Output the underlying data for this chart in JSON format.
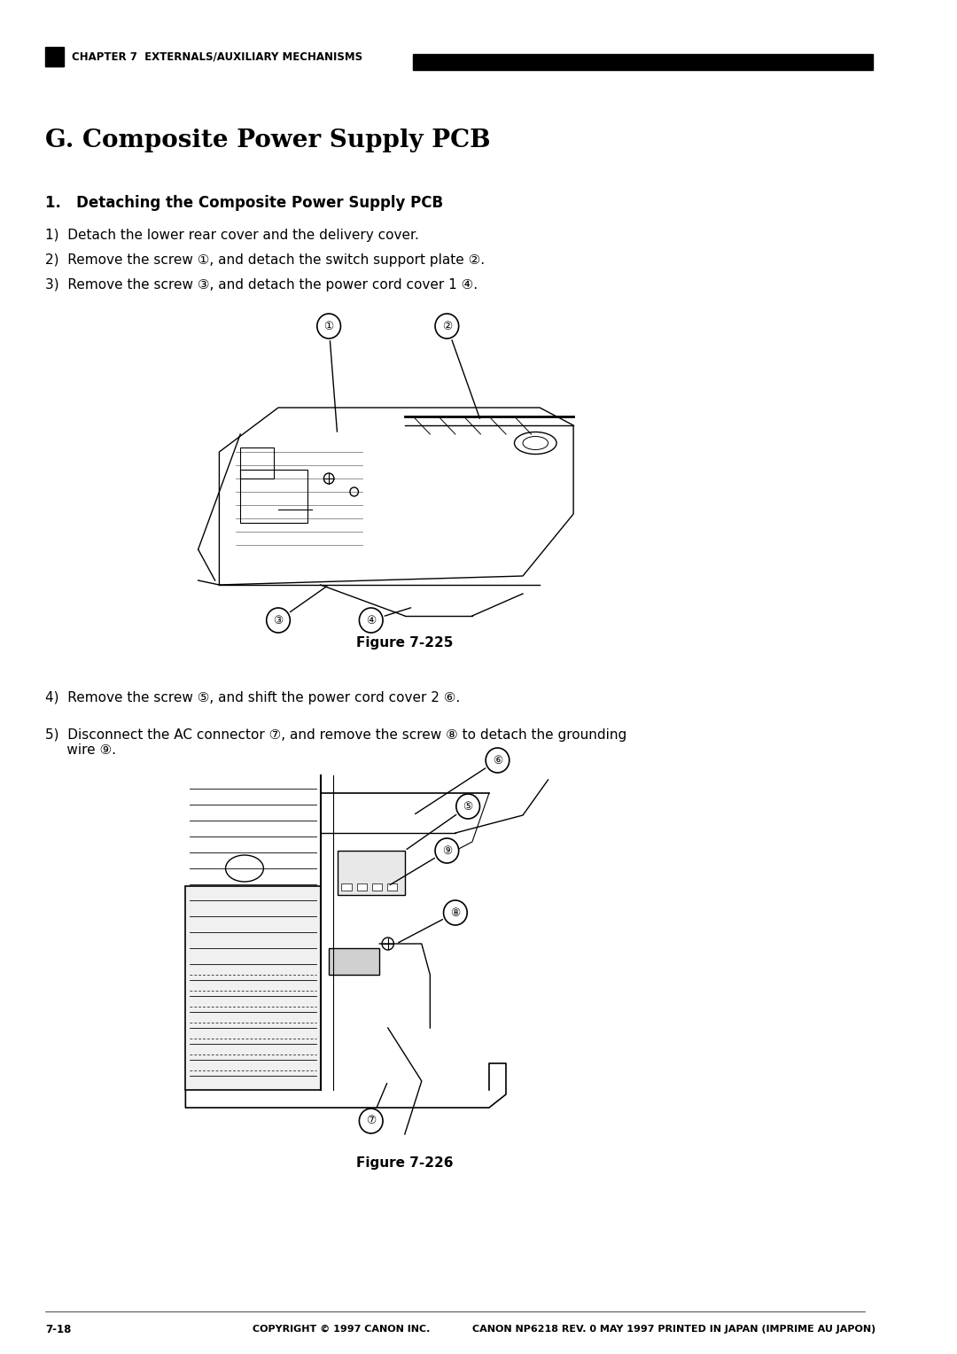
{
  "page_width": 10.8,
  "page_height": 15.28,
  "bg_color": "#ffffff",
  "header_bar_color": "#000000",
  "header_text": "CHAPTER 7  EXTERNALS/AUXILIARY MECHANISMS",
  "section_title": "G. Composite Power Supply PCB",
  "subsection_title": "1.   Detaching the Composite Power Supply PCB",
  "steps": [
    "1)  Detach the lower rear cover and the delivery cover.",
    "2)  Remove the screw ①, and detach the switch support plate ②.",
    "3)  Remove the screw ③, and detach the power cord cover 1 ④."
  ],
  "steps2": [
    "4)  Remove the screw ⑤, and shift the power cord cover 2 ⑥.",
    "5)  Disconnect the AC connector ⑦, and remove the screw ⑧ to detach the grounding\n     wire ⑨."
  ],
  "fig1_caption": "Figure 7-225",
  "fig2_caption": "Figure 7-226",
  "footer_left": "7-18",
  "footer_center": "COPYRIGHT © 1997 CANON INC.",
  "footer_right": "CANON NP6218 REV. 0 MAY 1997 PRINTED IN JAPAN (IMPRIME AU JAPON)"
}
